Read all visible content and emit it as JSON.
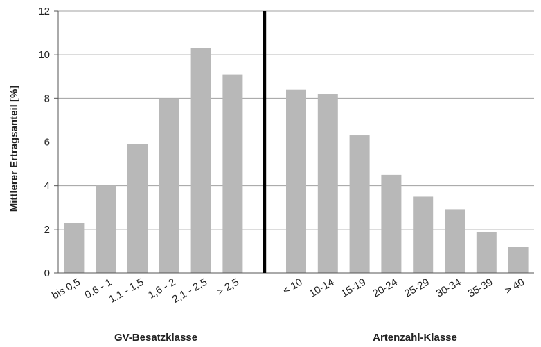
{
  "chart_data": {
    "type": "bar",
    "ylabel": "Mittlerer Ertragsanteil [%]",
    "ylim": [
      0,
      12
    ],
    "yticks": [
      0,
      2,
      4,
      6,
      8,
      10,
      12
    ],
    "grid": true,
    "groups": [
      {
        "label": "GV-Besatzklasse",
        "categories": [
          "bis 0,5",
          "0,6 - 1",
          "1,1 - 1,5",
          "1,6 - 2",
          "2,1 - 2,5",
          "> 2,5"
        ],
        "values": [
          2.3,
          4.0,
          5.9,
          8.0,
          10.3,
          9.1
        ]
      },
      {
        "label": "Artenzahl-Klasse",
        "categories": [
          "< 10",
          "10-14",
          "15-19",
          "20-24",
          "25-29",
          "30-34",
          "35-39",
          "> 40"
        ],
        "values": [
          8.4,
          8.2,
          6.3,
          4.5,
          3.5,
          2.9,
          1.9,
          1.2
        ]
      }
    ],
    "colors": {
      "bar": "#b8b8b8",
      "grid": "#a0a0a0",
      "separator": "#000000"
    }
  }
}
